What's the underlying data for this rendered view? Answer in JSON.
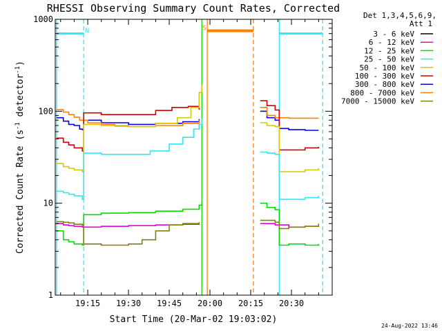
{
  "chart_data": {
    "type": "line",
    "title": "RHESSI Observing Summary Count Rates, Corrected",
    "xlabel": "Start Time (20-Mar-02 19:03:02)",
    "ylabel_main": "Corrected Count Rate (s",
    "ylabel_sup1": "-1",
    "ylabel_mid": " detector",
    "ylabel_sup2": "-1",
    "ylabel_end": ")",
    "y_scale": "log",
    "ylim": [
      1,
      1000
    ],
    "x_range_minutes": [
      1143.03,
      1245
    ],
    "x_ticks": [
      {
        "minute": 1155,
        "label": "19:15"
      },
      {
        "minute": 1170,
        "label": "19:30"
      },
      {
        "minute": 1185,
        "label": "19:45"
      },
      {
        "minute": 1200,
        "label": "20:00"
      },
      {
        "minute": 1215,
        "label": "20:15"
      },
      {
        "minute": 1230,
        "label": "20:30"
      }
    ],
    "y_ticks": [
      {
        "value": 1,
        "label": "1"
      },
      {
        "value": 10,
        "label": "10"
      },
      {
        "value": 100,
        "label": "100"
      },
      {
        "value": 1000,
        "label": "1000"
      }
    ],
    "detector_line1": "Det 1,3,4,5,6,9,",
    "detector_line2": "Att 1",
    "legend": [
      {
        "label": "3 - 6 keV",
        "color": "#000000"
      },
      {
        "label": "6 - 12 keV",
        "color": "#e000e0"
      },
      {
        "label": "12 - 25 keV",
        "color": "#00e000"
      },
      {
        "label": "25 - 50 keV",
        "color": "#30e8f0"
      },
      {
        "label": "50 - 100 keV",
        "color": "#d8c800"
      },
      {
        "label": "100 - 300 keV",
        "color": "#d00000"
      },
      {
        "label": "300 - 800 keV",
        "color": "#0000e0"
      },
      {
        "label": "800 - 7000 keV",
        "color": "#ff7f00"
      },
      {
        "label": "7000 - 15000 keV",
        "color": "#808000"
      }
    ],
    "series": [
      {
        "name": "300 - 800 keV",
        "color": "#0000e0",
        "segments": [
          [
            [
              1143.5,
              85
            ],
            [
              1146,
              78
            ],
            [
              1148,
              72
            ],
            [
              1150,
              70
            ],
            [
              1152,
              64
            ],
            [
              1153,
              63
            ],
            [
              1153.5,
              80
            ],
            [
              1160,
              75
            ],
            [
              1170,
              72
            ],
            [
              1180,
              74
            ],
            [
              1190,
              77
            ],
            [
              1196,
              82
            ]
          ],
          [
            [
              1218.5,
              100
            ],
            [
              1221,
              85
            ],
            [
              1224,
              80
            ],
            [
              1225.5,
              65
            ],
            [
              1229,
              63
            ],
            [
              1235,
              62
            ],
            [
              1240,
              62
            ]
          ]
        ]
      },
      {
        "name": "800 - 7000 keV",
        "color": "#ff7f00",
        "segments": [
          [
            [
              1143.5,
              104
            ],
            [
              1146,
              98
            ],
            [
              1148,
              92
            ],
            [
              1150,
              86
            ],
            [
              1152,
              80
            ],
            [
              1155,
              75
            ],
            [
              1160,
              72
            ],
            [
              1165,
              69
            ],
            [
              1170,
              68
            ],
            [
              1175,
              68
            ],
            [
              1180,
              70
            ],
            [
              1190,
              74
            ],
            [
              1196,
              80
            ]
          ],
          [
            [
              1218.5,
              110
            ],
            [
              1221,
              90
            ],
            [
              1224,
              85
            ],
            [
              1229,
              84
            ],
            [
              1235,
              84
            ],
            [
              1240,
              84
            ]
          ]
        ]
      },
      {
        "name": "100 - 300 keV",
        "color": "#d00000",
        "segments": [
          [
            [
              1143.5,
              51
            ],
            [
              1146,
              46
            ],
            [
              1148,
              43
            ],
            [
              1150,
              40
            ],
            [
              1153,
              37
            ],
            [
              1153.5,
              96
            ],
            [
              1160,
              92
            ],
            [
              1170,
              92
            ],
            [
              1180,
              102
            ],
            [
              1186,
              110
            ],
            [
              1192,
              113
            ],
            [
              1196,
              104
            ]
          ],
          [
            [
              1218.5,
              130
            ],
            [
              1221,
              115
            ],
            [
              1224,
              103
            ],
            [
              1225.5,
              38
            ],
            [
              1229,
              38
            ],
            [
              1235,
              40
            ],
            [
              1240,
              41
            ]
          ]
        ]
      },
      {
        "name": "50 - 100 keV",
        "color": "#d8c800",
        "segments": [
          [
            [
              1143.5,
              27
            ],
            [
              1146,
              25
            ],
            [
              1148,
              24
            ],
            [
              1150,
              23
            ],
            [
              1153,
              22
            ],
            [
              1153.5,
              72
            ],
            [
              1160,
              70
            ],
            [
              1170,
              68
            ],
            [
              1180,
              74
            ],
            [
              1188,
              85
            ],
            [
              1193,
              110
            ],
            [
              1196,
              160
            ],
            [
              1197,
              195
            ]
          ],
          [
            [
              1218.5,
              75
            ],
            [
              1221,
              70
            ],
            [
              1224,
              68
            ],
            [
              1225.5,
              22
            ],
            [
              1229,
              22
            ],
            [
              1235,
              23
            ],
            [
              1240,
              24
            ]
          ]
        ]
      },
      {
        "name": "25 - 50 keV",
        "color": "#30e8f0",
        "segments": [
          [
            [
              1143.5,
              13.5
            ],
            [
              1146,
              13
            ],
            [
              1148,
              12.5
            ],
            [
              1150,
              12
            ],
            [
              1153,
              11
            ],
            [
              1153.5,
              35
            ],
            [
              1160,
              34
            ],
            [
              1170,
              34
            ],
            [
              1178,
              37
            ],
            [
              1185,
              44
            ],
            [
              1190,
              52
            ],
            [
              1194,
              64
            ],
            [
              1196,
              72
            ],
            [
              1197,
              84
            ]
          ],
          [
            [
              1218.5,
              36
            ],
            [
              1221,
              35
            ],
            [
              1224,
              34
            ],
            [
              1225.5,
              11
            ],
            [
              1229,
              11
            ],
            [
              1235,
              11.5
            ],
            [
              1240,
              12
            ]
          ]
        ]
      },
      {
        "name": "12 - 25 keV",
        "color": "#00e000",
        "segments": [
          [
            [
              1143.5,
              5
            ],
            [
              1146,
              4
            ],
            [
              1148,
              3.8
            ],
            [
              1150,
              3.6
            ],
            [
              1153,
              3.5
            ],
            [
              1153.5,
              7.5
            ],
            [
              1160,
              7.8
            ],
            [
              1170,
              7.9
            ],
            [
              1180,
              8.2
            ],
            [
              1190,
              8.6
            ],
            [
              1196,
              9.5
            ],
            [
              1197,
              10
            ]
          ],
          [
            [
              1218.5,
              10
            ],
            [
              1221,
              9
            ],
            [
              1224,
              8.5
            ],
            [
              1225.5,
              3.5
            ],
            [
              1229,
              3.6
            ],
            [
              1235,
              3.5
            ],
            [
              1240,
              3.6
            ]
          ]
        ]
      },
      {
        "name": "6 - 12 keV",
        "color": "#e000e0",
        "segments": [
          [
            [
              1143.5,
              6
            ],
            [
              1146,
              5.8
            ],
            [
              1148,
              5.7
            ],
            [
              1150,
              5.6
            ],
            [
              1153,
              5.5
            ],
            [
              1160,
              5.6
            ],
            [
              1170,
              5.7
            ],
            [
              1180,
              5.8
            ],
            [
              1190,
              5.9
            ],
            [
              1196,
              6
            ]
          ],
          [
            [
              1218.5,
              6
            ],
            [
              1224,
              5.8
            ],
            [
              1229,
              5.5
            ],
            [
              1235,
              5.6
            ],
            [
              1240,
              5.7
            ]
          ]
        ]
      },
      {
        "name": "7000 - 15000 keV",
        "color": "#808000",
        "segments": [
          [
            [
              1143.5,
              6.3
            ],
            [
              1146,
              6.2
            ],
            [
              1148,
              6.1
            ],
            [
              1150,
              5.9
            ],
            [
              1153,
              5.8
            ],
            [
              1153.5,
              3.6
            ],
            [
              1160,
              3.5
            ],
            [
              1170,
              3.6
            ],
            [
              1175,
              4
            ],
            [
              1180,
              5
            ],
            [
              1185,
              5.8
            ],
            [
              1190,
              6
            ],
            [
              1196,
              6.2
            ]
          ],
          [
            [
              1218.5,
              6.5
            ],
            [
              1224,
              6.2
            ],
            [
              1225.5,
              5.3
            ],
            [
              1229,
              5.5
            ],
            [
              1235,
              5.6
            ],
            [
              1240,
              6
            ]
          ]
        ]
      }
    ],
    "flag_lines": [
      {
        "minute": 1143.5,
        "color": "#30e8f0",
        "style": "solid"
      },
      {
        "minute": 1153.5,
        "color": "#30e8f0",
        "style": "dashed"
      },
      {
        "minute": 1225.5,
        "color": "#30e8f0",
        "style": "solid"
      },
      {
        "minute": 1241.5,
        "color": "#30e8f0",
        "style": "dashed"
      },
      {
        "minute": 1197,
        "color": "#00e000",
        "style": "solid"
      },
      {
        "minute": 1199,
        "color": "#ff7f00",
        "style": "solid"
      },
      {
        "minute": 1216,
        "color": "#ff7f00",
        "style": "dashed"
      }
    ],
    "flag_bars": [
      {
        "label": "N",
        "color": "#30e8f0",
        "y": 700,
        "segments": [
          [
            1143.5,
            1153.5
          ],
          [
            1225.5,
            1241.5
          ]
        ],
        "label_minute": 1154
      }
    ],
    "saa_bar": {
      "label": "S",
      "color": "#ff7f00",
      "y": 750,
      "segments": [
        [
          1199,
          1216
        ]
      ],
      "label_minute": 1197.2
    }
  },
  "footer_date": "24-Aug-2022 13:46"
}
